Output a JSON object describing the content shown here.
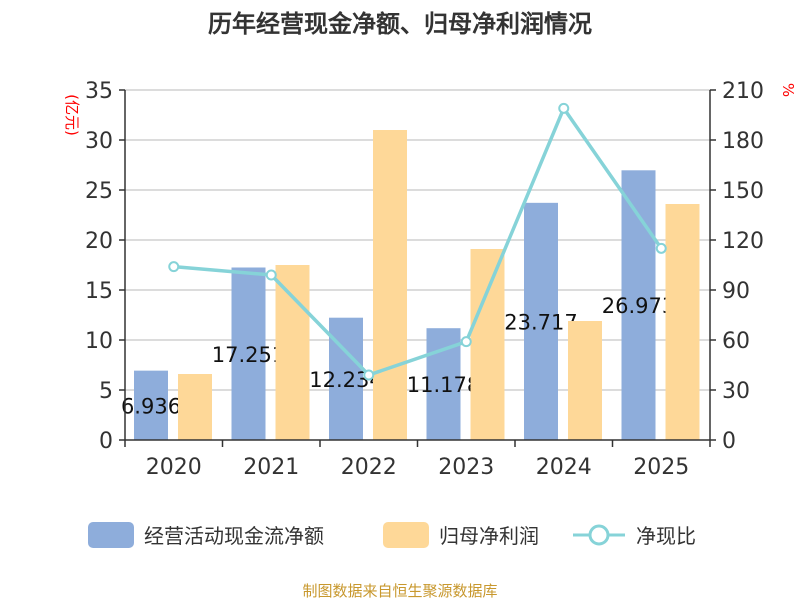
{
  "chart_data": {
    "type": "bar",
    "title": "历年经营现金净额、归母净利润情况",
    "categories": [
      "2020",
      "2021",
      "2022",
      "2023",
      "2024",
      "2025"
    ],
    "ylabel_left": "(亿元)",
    "ylabel_right": "%",
    "ylim_left": [
      0,
      35
    ],
    "yticks_left": [
      0,
      5,
      10,
      15,
      20,
      25,
      30,
      35
    ],
    "ylim_right": [
      0,
      210
    ],
    "yticks_right": [
      0,
      30,
      60,
      90,
      120,
      150,
      180,
      210
    ],
    "grid": true,
    "legend_position": "bottom",
    "series": [
      {
        "name": "经营活动现金流净额",
        "kind": "bar",
        "axis": "left",
        "color": "#8eaddb",
        "values": [
          6.936,
          17.25,
          12.23,
          11.18,
          23.717,
          26.97
        ],
        "labels": [
          "6.936",
          "17.251",
          "12.234",
          "11.178",
          "23.717",
          "26.973"
        ]
      },
      {
        "name": "归母净利润",
        "kind": "bar",
        "axis": "left",
        "color": "#fed898",
        "values": [
          6.6,
          17.5,
          31.0,
          19.1,
          11.9,
          23.6
        ]
      },
      {
        "name": "净现比",
        "kind": "line",
        "axis": "right",
        "color": "#86d3d8",
        "values": [
          104,
          99,
          39,
          59,
          199,
          115
        ]
      }
    ]
  },
  "footer": "制图数据来自恒生聚源数据库"
}
